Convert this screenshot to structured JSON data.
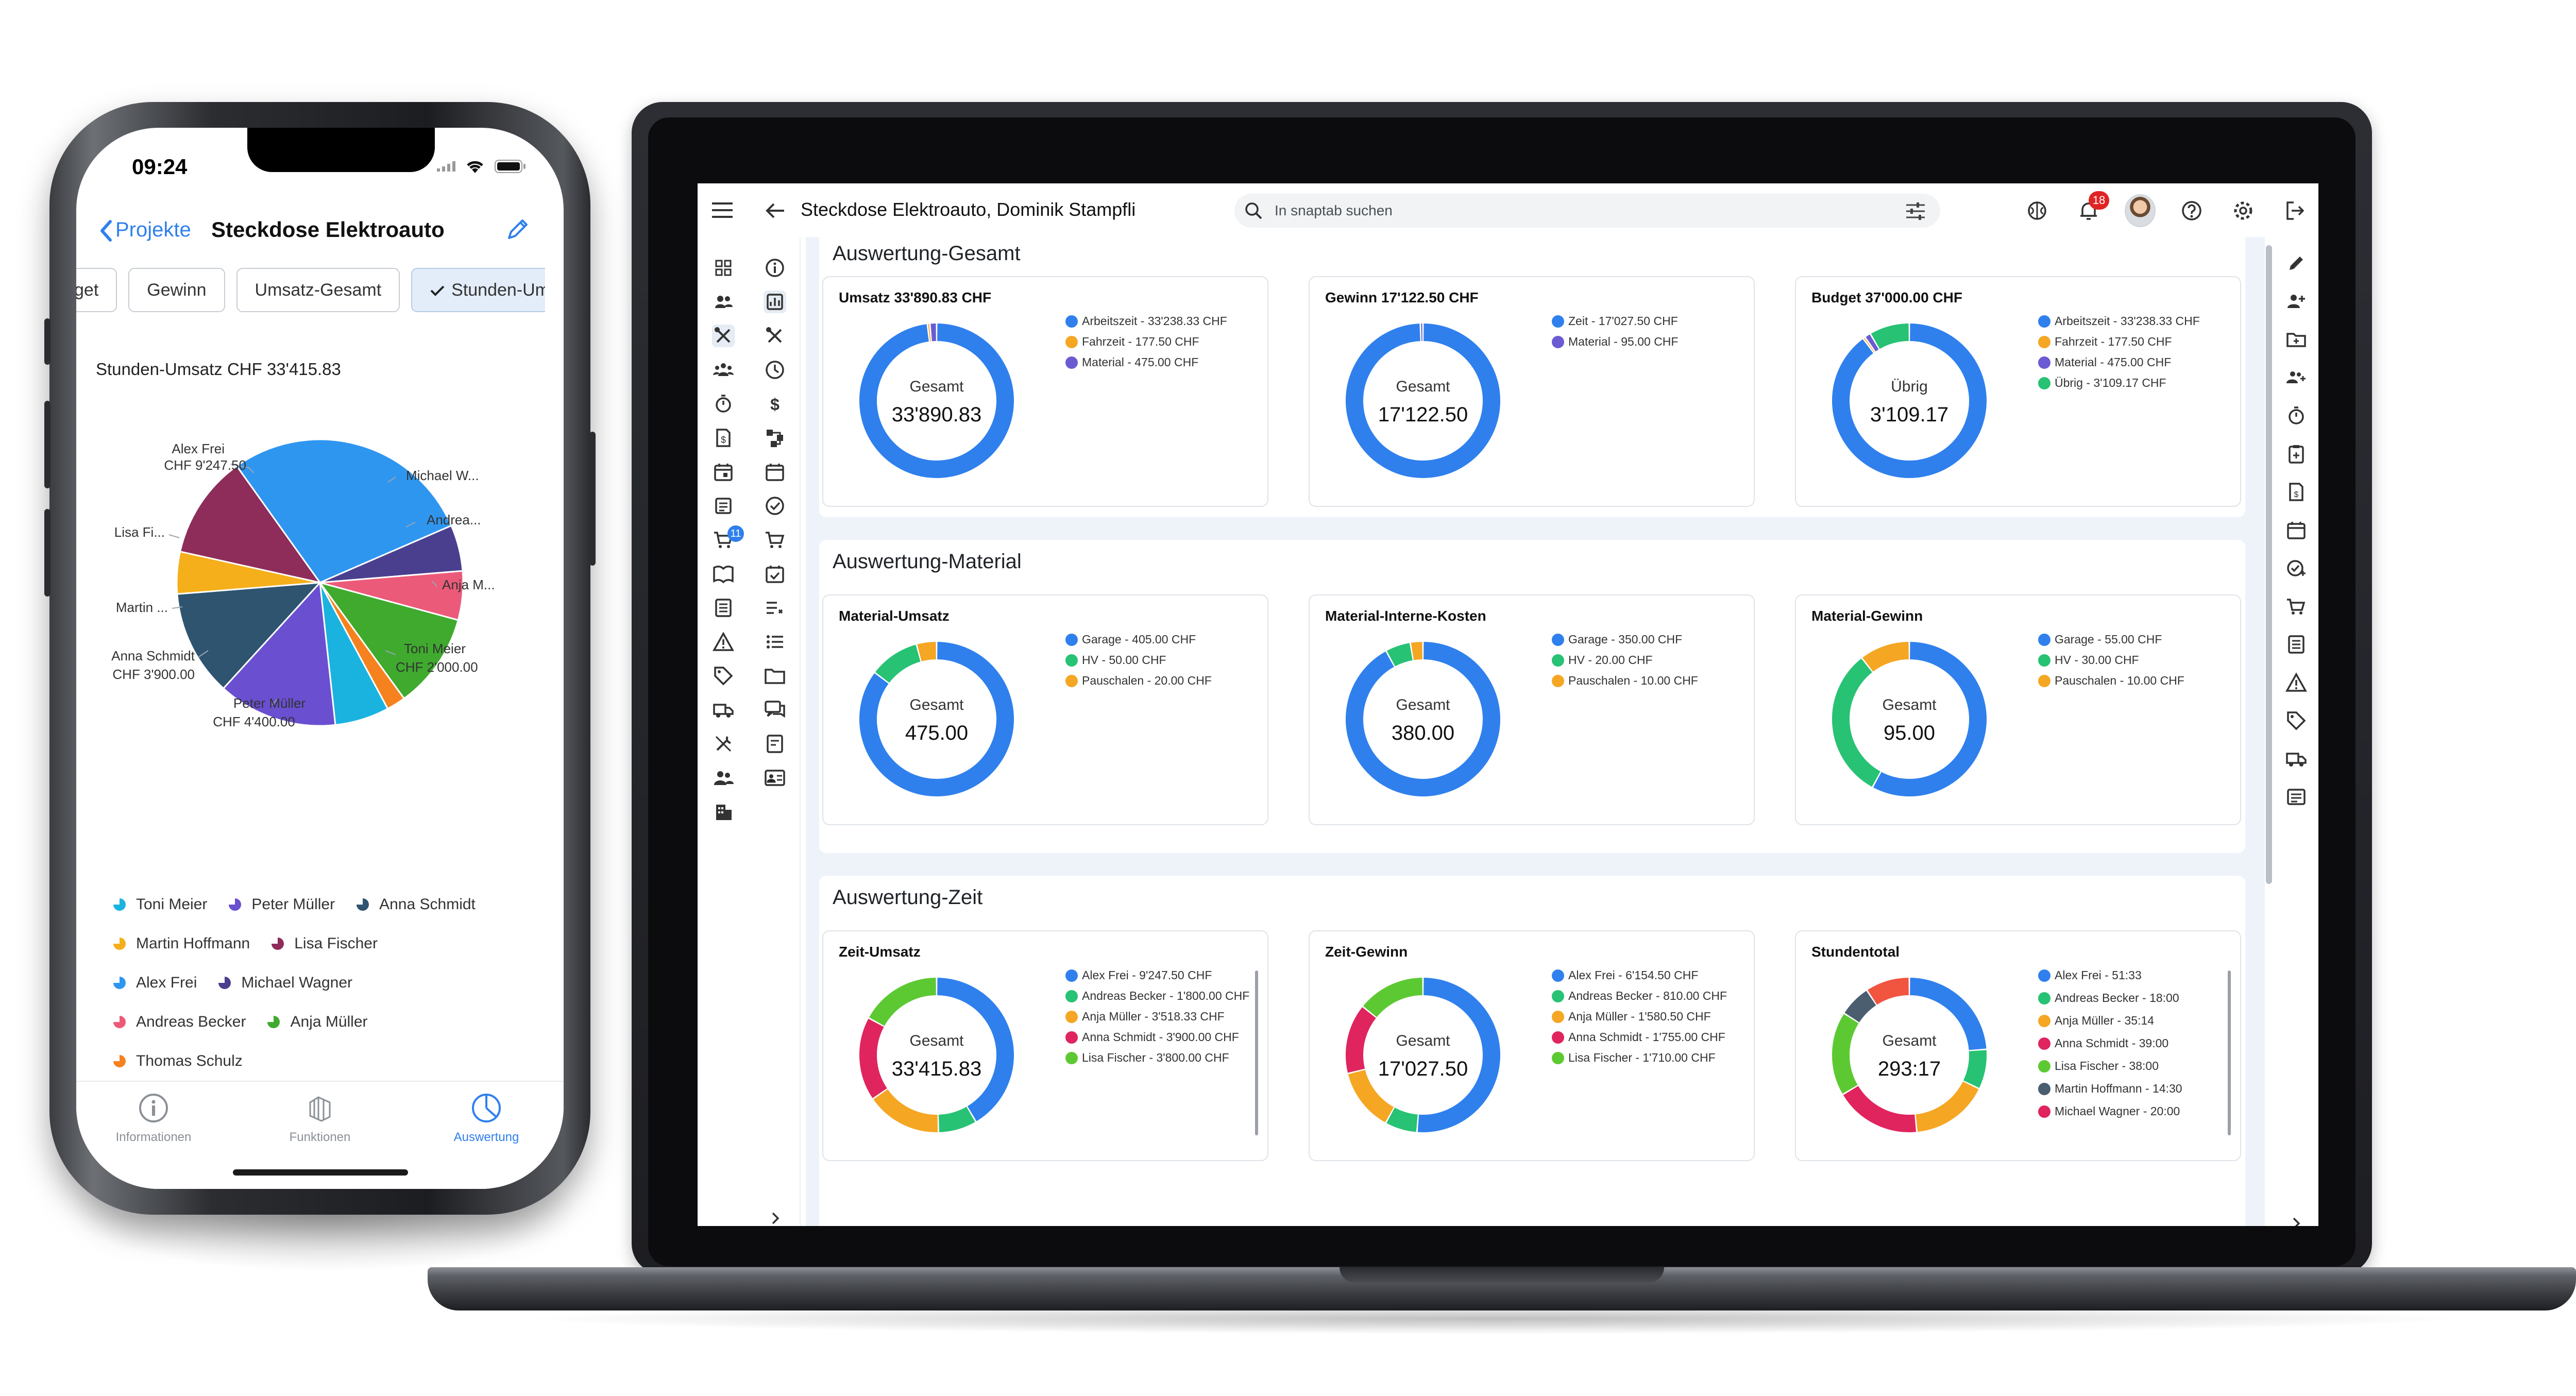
{
  "colors": {
    "blue": "#2F80ED",
    "orange": "#F5A623",
    "purple": "#6B5BD2",
    "green": "#27C274",
    "teal": "#1FB3D8",
    "magenta": "#E0245E",
    "darkblue": "#2D3A8C",
    "red": "#F1543F",
    "lime": "#5DC932",
    "slate": "#4A5E70",
    "maroon": "#8E2D5A",
    "pink": "#E65A7B"
  },
  "phone": {
    "status_time": "09:24",
    "nav": {
      "back_label": "Projekte",
      "title": "Steckdose Elektroauto"
    },
    "chips": [
      "get",
      "Gewinn",
      "Umsatz-Gesamt",
      "Stunden-Um"
    ],
    "total_label": "Stunden-Umsatz",
    "total_value": "CHF 33'415.83",
    "pie_labels": {
      "alex": [
        "Alex Frei",
        "CHF 9'247.50"
      ],
      "michael": "Michael W...",
      "andreas": "Andrea...",
      "anja": "Anja M...",
      "toni": [
        "Toni Meier",
        "CHF 2'000.00"
      ],
      "peter": [
        "Peter Müller",
        "CHF 4'400.00"
      ],
      "anna": [
        "Anna Schmidt",
        "CHF 3'900.00"
      ],
      "martin": "Martin ...",
      "lisa": "Lisa Fi..."
    },
    "legend": [
      [
        "Toni Meier",
        "Peter Müller",
        "Anna Schmidt"
      ],
      [
        "Martin Hoffmann",
        "Lisa Fischer"
      ],
      [
        "Alex Frei",
        "Michael Wagner"
      ],
      [
        "Andreas Becker",
        "Anja Müller"
      ],
      [
        "Thomas Schulz"
      ]
    ],
    "tabs": [
      "Informationen",
      "Funktionen",
      "Auswertung"
    ]
  },
  "laptop": {
    "title": "Steckdose Elektroauto, Dominik Stampfli",
    "search_placeholder": "In snaptab suchen",
    "notifications": "18",
    "rail_badge": "11",
    "sections": [
      {
        "title": "Auswertung-Gesamt",
        "cards": [
          {
            "title": "Umsatz 33'890.83 CHF",
            "center_label": "Gesamt",
            "center_value": "33'890.83",
            "legend": [
              "Arbeitszeit - 33'238.33 CHF",
              "Fahrzeit - 177.50 CHF",
              "Material - 475.00 CHF"
            ]
          },
          {
            "title": "Gewinn 17'122.50 CHF",
            "center_label": "Gesamt",
            "center_value": "17'122.50",
            "legend": [
              "Zeit - 17'027.50 CHF",
              "Material - 95.00 CHF"
            ]
          },
          {
            "title": "Budget 37'000.00 CHF",
            "center_label": "Übrig",
            "center_value": "3'109.17",
            "legend": [
              "Arbeitszeit - 33'238.33 CHF",
              "Fahrzeit - 177.50 CHF",
              "Material - 475.00 CHF",
              "Übrig - 3'109.17 CHF"
            ]
          }
        ]
      },
      {
        "title": "Auswertung-Material",
        "cards": [
          {
            "title": "Material-Umsatz",
            "center_label": "Gesamt",
            "center_value": "475.00",
            "legend": [
              "Garage - 405.00 CHF",
              "HV - 50.00 CHF",
              "Pauschalen - 20.00 CHF"
            ]
          },
          {
            "title": "Material-Interne-Kosten",
            "center_label": "Gesamt",
            "center_value": "380.00",
            "legend": [
              "Garage - 350.00 CHF",
              "HV - 20.00 CHF",
              "Pauschalen - 10.00 CHF"
            ]
          },
          {
            "title": "Material-Gewinn",
            "center_label": "Gesamt",
            "center_value": "95.00",
            "legend": [
              "Garage - 55.00 CHF",
              "HV - 30.00 CHF",
              "Pauschalen - 10.00 CHF"
            ]
          }
        ]
      },
      {
        "title": "Auswertung-Zeit",
        "cards": [
          {
            "title": "Zeit-Umsatz",
            "center_label": "Gesamt",
            "center_value": "33'415.83",
            "legend": [
              "Alex Frei - 9'247.50 CHF",
              "Andreas Becker - 1'800.00 CHF",
              "Anja Müller - 3'518.33 CHF",
              "Anna Schmidt - 3'900.00 CHF",
              "Lisa Fischer - 3'800.00 CHF"
            ]
          },
          {
            "title": "Zeit-Gewinn",
            "center_label": "Gesamt",
            "center_value": "17'027.50",
            "legend": [
              "Alex Frei - 6'154.50 CHF",
              "Andreas Becker - 810.00 CHF",
              "Anja Müller - 1'580.50 CHF",
              "Anna Schmidt - 1'755.00 CHF",
              "Lisa Fischer - 1'710.00 CHF"
            ]
          },
          {
            "title": "Stundentotal",
            "center_label": "Gesamt",
            "center_value": "293:17",
            "legend": [
              "Alex Frei - 51:33",
              "Andreas Becker - 18:00",
              "Anja Müller - 35:14",
              "Anna Schmidt - 39:00",
              "Lisa Fischer - 38:00",
              "Martin Hoffmann - 14:30",
              "Michael Wagner - 20:00"
            ]
          }
        ]
      }
    ]
  },
  "chart_data": [
    {
      "type": "pie",
      "title": "Stunden-Umsatz CHF 33'415.83",
      "categories": [
        "Alex Frei",
        "Michael Wagner",
        "Andreas Becker",
        "Anja Müller",
        "Thomas Schulz",
        "Toni Meier",
        "Peter Müller",
        "Anna Schmidt",
        "Martin Hoffmann",
        "Lisa Fischer"
      ],
      "values": [
        9247.5,
        1700,
        1800,
        3518.33,
        700,
        2000,
        4400,
        3900,
        1550,
        3800
      ],
      "colors": [
        "#2F96F0",
        "#4A3F8F",
        "#EC5A7A",
        "#3FAA2E",
        "#F5821F",
        "#1AB3E0",
        "#6A4FD0",
        "#2E5470",
        "#F5AF1B",
        "#8E2D5A"
      ]
    },
    {
      "type": "pie",
      "title": "Umsatz 33'890.83 CHF",
      "categories": [
        "Arbeitszeit",
        "Fahrzeit",
        "Material"
      ],
      "values": [
        33238.33,
        177.5,
        475.0
      ]
    },
    {
      "type": "pie",
      "title": "Gewinn 17'122.50 CHF",
      "categories": [
        "Zeit",
        "Material"
      ],
      "values": [
        17027.5,
        95.0
      ]
    },
    {
      "type": "pie",
      "title": "Budget 37'000.00 CHF",
      "categories": [
        "Arbeitszeit",
        "Fahrzeit",
        "Material",
        "Übrig"
      ],
      "values": [
        33238.33,
        177.5,
        475.0,
        3109.17
      ]
    },
    {
      "type": "pie",
      "title": "Material-Umsatz",
      "categories": [
        "Garage",
        "HV",
        "Pauschalen"
      ],
      "values": [
        405.0,
        50.0,
        20.0
      ]
    },
    {
      "type": "pie",
      "title": "Material-Interne-Kosten",
      "categories": [
        "Garage",
        "HV",
        "Pauschalen"
      ],
      "values": [
        350.0,
        20.0,
        10.0
      ]
    },
    {
      "type": "pie",
      "title": "Material-Gewinn",
      "categories": [
        "Garage",
        "HV",
        "Pauschalen"
      ],
      "values": [
        55.0,
        30.0,
        10.0
      ]
    },
    {
      "type": "pie",
      "title": "Zeit-Umsatz",
      "categories": [
        "Alex Frei",
        "Andreas Becker",
        "Anja Müller",
        "Anna Schmidt",
        "Lisa Fischer"
      ],
      "values": [
        9247.5,
        1800.0,
        3518.33,
        3900.0,
        3800.0
      ]
    },
    {
      "type": "pie",
      "title": "Zeit-Gewinn",
      "categories": [
        "Alex Frei",
        "Andreas Becker",
        "Anja Müller",
        "Anna Schmidt",
        "Lisa Fischer"
      ],
      "values": [
        6154.5,
        810.0,
        1580.5,
        1755.0,
        1710.0
      ]
    },
    {
      "type": "pie",
      "title": "Stundentotal",
      "categories": [
        "Alex Frei",
        "Andreas Becker",
        "Anja Müller",
        "Anna Schmidt",
        "Lisa Fischer",
        "Martin Hoffmann",
        "Michael Wagner"
      ],
      "values": [
        51.55,
        18.0,
        35.23,
        39.0,
        38.0,
        14.5,
        20.0
      ]
    }
  ]
}
